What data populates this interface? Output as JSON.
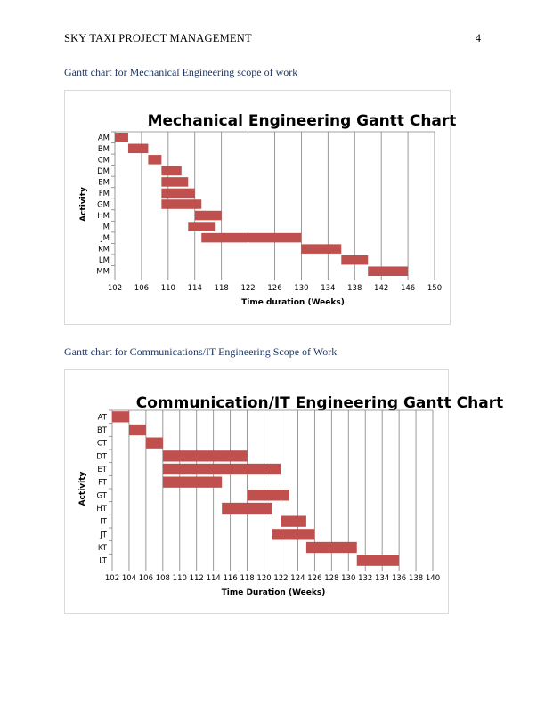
{
  "header": {
    "running_title": "SKY TAXI PROJECT MANAGEMENT",
    "page_number": "4"
  },
  "captions": {
    "mechanical": "Gantt chart for Mechanical Engineering scope of work",
    "communications": "Gantt chart for Communications/IT Engineering Scope of Work"
  },
  "colors": {
    "bar": "#c0504d",
    "grid": "#808080",
    "caption": "#1f3864"
  },
  "chart_data": [
    {
      "type": "bar",
      "orientation": "horizontal-gantt",
      "title": "Mechanical Engineering Gantt Chart",
      "xlabel": "Time duration (Weeks)",
      "ylabel": "Activity",
      "xlim": [
        102,
        150
      ],
      "xticks": [
        102,
        106,
        110,
        114,
        118,
        122,
        126,
        130,
        134,
        138,
        142,
        146,
        150
      ],
      "grid": true,
      "categories": [
        "AM",
        "BM",
        "CM",
        "DM",
        "EM",
        "FM",
        "GM",
        "HM",
        "IM",
        "JM",
        "KM",
        "LM",
        "MM"
      ],
      "start": [
        102,
        104,
        107,
        109,
        109,
        109,
        109,
        114,
        113,
        115,
        130,
        136,
        140
      ],
      "end": [
        104,
        107,
        109,
        112,
        113,
        114,
        115,
        118,
        117,
        130,
        136,
        140,
        146
      ]
    },
    {
      "type": "bar",
      "orientation": "horizontal-gantt",
      "title": "Communication/IT Engineering Gantt Chart",
      "xlabel": "Time Duration (Weeks)",
      "ylabel": "Activity",
      "xlim": [
        102,
        140
      ],
      "xticks": [
        102,
        104,
        106,
        108,
        110,
        112,
        114,
        116,
        118,
        120,
        122,
        124,
        126,
        128,
        130,
        132,
        134,
        136,
        138,
        140
      ],
      "grid": true,
      "categories": [
        "AT",
        "BT",
        "CT",
        "DT",
        "ET",
        "FT",
        "GT",
        "HT",
        "IT",
        "JT",
        "KT",
        "LT"
      ],
      "start": [
        102,
        104,
        106,
        108,
        108,
        108,
        118,
        115,
        122,
        121,
        125,
        131
      ],
      "end": [
        104,
        106,
        108,
        118,
        122,
        115,
        123,
        121,
        125,
        126,
        131,
        136
      ]
    }
  ]
}
